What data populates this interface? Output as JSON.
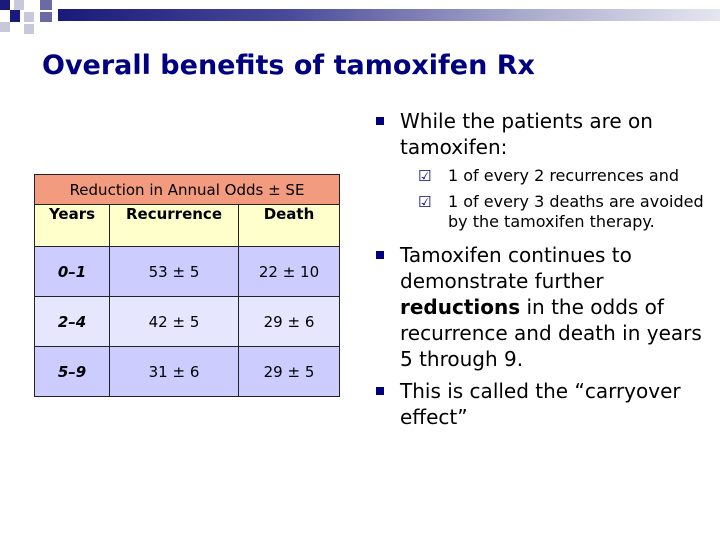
{
  "slide": {
    "title": "Overall benefits of tamoxifen Rx"
  },
  "table": {
    "caption": "Reduction in Annual Odds ± SE",
    "headers": [
      "Years",
      "Recurrence",
      "Death"
    ],
    "rows": [
      {
        "years": "0–1",
        "recurrence": "53 ± 5",
        "death": "22 ± 10"
      },
      {
        "years": "2–4",
        "recurrence": "42 ± 5",
        "death": "29 ± 6"
      },
      {
        "years": "5–9",
        "recurrence": "31 ± 6",
        "death": "29 ± 5"
      }
    ]
  },
  "bullets": {
    "b1": "While the patients are on tamoxifen:",
    "b1_sub": [
      "1 of every 2 recurrences and",
      "1 of every 3 deaths are avoided by the tamoxifen therapy."
    ],
    "b2_pre": "Tamoxifen continues to demonstrate further ",
    "b2_bold": "reductions",
    "b2_post": " in the odds of recurrence and death in years 5 through 9.",
    "b3": "This is called the “carryover effect”"
  },
  "colors": {
    "title": "#000080",
    "caption_bg": "#f39b7f",
    "header_bg": "#ffffcc",
    "row_dark": "#ccccff",
    "row_light": "#e6e6ff",
    "bullet": "#000080"
  },
  "icons": {
    "level1_bullet": "square-bullet-icon",
    "level2_bullet": "checkbox-check-icon"
  }
}
